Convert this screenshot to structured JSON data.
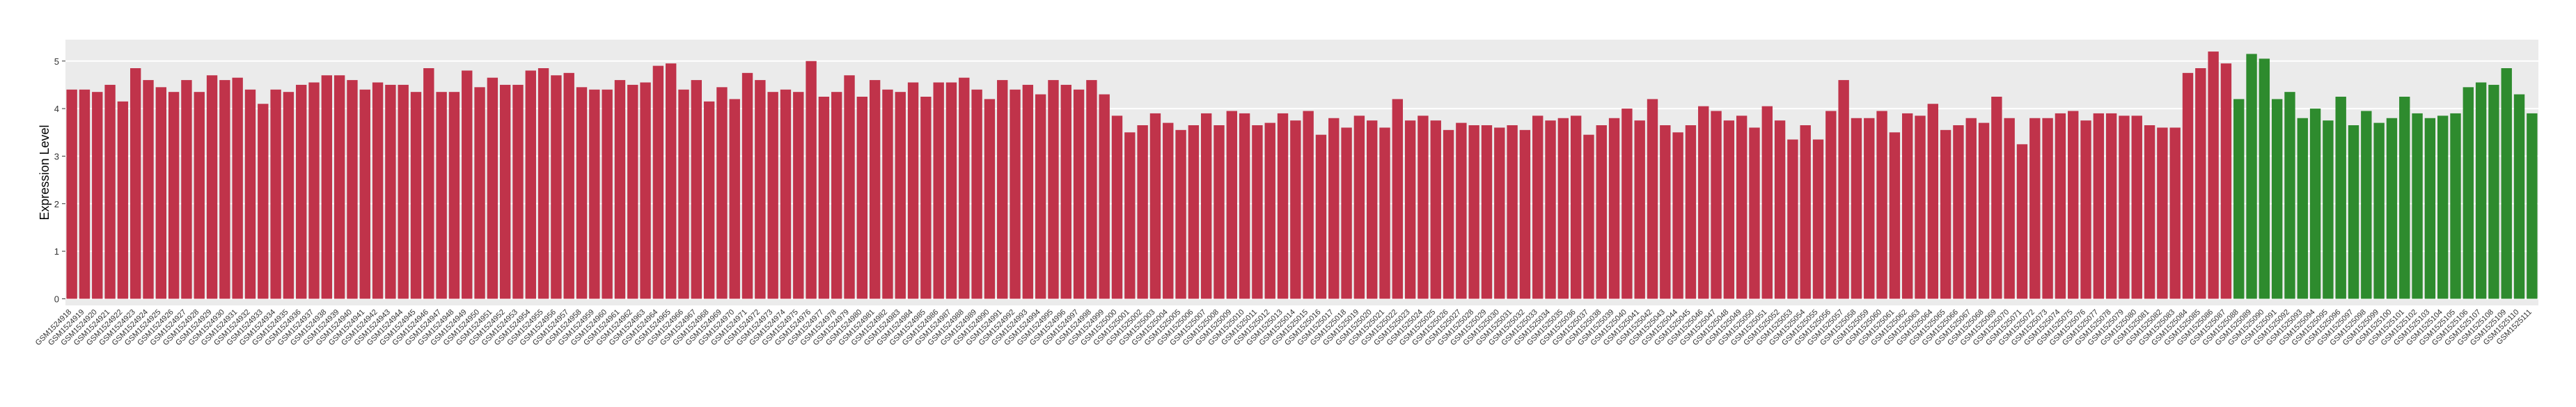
{
  "chart_data": {
    "type": "bar",
    "ylabel": "Expression Level",
    "categories": [
      "GSM1524918",
      "GSM1524919",
      "GSM1524920",
      "GSM1524921",
      "GSM1524922",
      "GSM1524923",
      "GSM1524924",
      "GSM1524925",
      "GSM1524926",
      "GSM1524927",
      "GSM1524928",
      "GSM1524929",
      "GSM1524930",
      "GSM1524931",
      "GSM1524932",
      "GSM1524933",
      "GSM1524934",
      "GSM1524935",
      "GSM1524936",
      "GSM1524937",
      "GSM1524938",
      "GSM1524939",
      "GSM1524940",
      "GSM1524941",
      "GSM1524942",
      "GSM1524943",
      "GSM1524944",
      "GSM1524945",
      "GSM1524946",
      "GSM1524947",
      "GSM1524948",
      "GSM1524949",
      "GSM1524950",
      "GSM1524951",
      "GSM1524952",
      "GSM1524953",
      "GSM1524954",
      "GSM1524955",
      "GSM1524956",
      "GSM1524957",
      "GSM1524958",
      "GSM1524959",
      "GSM1524960",
      "GSM1524961",
      "GSM1524962",
      "GSM1524963",
      "GSM1524964",
      "GSM1524965",
      "GSM1524966",
      "GSM1524967",
      "GSM1524968",
      "GSM1524969",
      "GSM1524970",
      "GSM1524971",
      "GSM1524972",
      "GSM1524973",
      "GSM1524974",
      "GSM1524975",
      "GSM1524976",
      "GSM1524977",
      "GSM1524978",
      "GSM1524979",
      "GSM1524980",
      "GSM1524981",
      "GSM1524982",
      "GSM1524983",
      "GSM1524984",
      "GSM1524985",
      "GSM1524986",
      "GSM1524987",
      "GSM1524988",
      "GSM1524989",
      "GSM1524990",
      "GSM1524991",
      "GSM1524992",
      "GSM1524993",
      "GSM1524994",
      "GSM1524995",
      "GSM1524996",
      "GSM1524997",
      "GSM1524998",
      "GSM1524999",
      "GSM1525000",
      "GSM1525001",
      "GSM1525002",
      "GSM1525003",
      "GSM1525004",
      "GSM1525005",
      "GSM1525006",
      "GSM1525007",
      "GSM1525008",
      "GSM1525009",
      "GSM1525010",
      "GSM1525011",
      "GSM1525012",
      "GSM1525013",
      "GSM1525014",
      "GSM1525015",
      "GSM1525016",
      "GSM1525017",
      "GSM1525018",
      "GSM1525019",
      "GSM1525020",
      "GSM1525021",
      "GSM1525022",
      "GSM1525023",
      "GSM1525024",
      "GSM1525025",
      "GSM1525026",
      "GSM1525027",
      "GSM1525028",
      "GSM1525029",
      "GSM1525030",
      "GSM1525031",
      "GSM1525032",
      "GSM1525033",
      "GSM1525034",
      "GSM1525035",
      "GSM1525036",
      "GSM1525037",
      "GSM1525038",
      "GSM1525039",
      "GSM1525040",
      "GSM1525041",
      "GSM1525042",
      "GSM1525043",
      "GSM1525044",
      "GSM1525045",
      "GSM1525046",
      "GSM1525047",
      "GSM1525048",
      "GSM1525049",
      "GSM1525050",
      "GSM1525051",
      "GSM1525052",
      "GSM1525053",
      "GSM1525054",
      "GSM1525055",
      "GSM1525056",
      "GSM1525057",
      "GSM1525058",
      "GSM1525059",
      "GSM1525060",
      "GSM1525061",
      "GSM1525062",
      "GSM1525063",
      "GSM1525064",
      "GSM1525065",
      "GSM1525066",
      "GSM1525067",
      "GSM1525068",
      "GSM1525069",
      "GSM1525070",
      "GSM1525071",
      "GSM1525072",
      "GSM1525073",
      "GSM1525074",
      "GSM1525075",
      "GSM1525076",
      "GSM1525077",
      "GSM1525078",
      "GSM1525079",
      "GSM1525080",
      "GSM1525081",
      "GSM1525082",
      "GSM1525083",
      "GSM1525084",
      "GSM1525085",
      "GSM1525086",
      "GSM1525087",
      "GSM1525088",
      "GSM1525089",
      "GSM1525090",
      "GSM1525091",
      "GSM1525092",
      "GSM1525093",
      "GSM1525094",
      "GSM1525095",
      "GSM1525096",
      "GSM1525097",
      "GSM1525098",
      "GSM1525099",
      "GSM1525100",
      "GSM1525101",
      "GSM1525102",
      "GSM1525103",
      "GSM1525104",
      "GSM1525105",
      "GSM1525106",
      "GSM1525107",
      "GSM1525108",
      "GSM1525109",
      "GSM1525110",
      "GSM1525111"
    ],
    "values": [
      4.4,
      4.4,
      4.35,
      4.5,
      4.15,
      4.85,
      4.6,
      4.45,
      4.35,
      4.6,
      4.35,
      4.7,
      4.6,
      4.65,
      4.4,
      4.1,
      4.4,
      4.35,
      4.5,
      4.55,
      4.7,
      4.7,
      4.6,
      4.4,
      4.55,
      4.5,
      4.5,
      4.35,
      4.85,
      4.35,
      4.35,
      4.8,
      4.45,
      4.65,
      4.5,
      4.5,
      4.8,
      4.85,
      4.7,
      4.75,
      4.45,
      4.4,
      4.4,
      4.6,
      4.5,
      4.55,
      4.9,
      4.95,
      4.4,
      4.6,
      4.15,
      4.45,
      4.2,
      4.75,
      4.6,
      4.35,
      4.4,
      4.35,
      5.0,
      4.25,
      4.35,
      4.7,
      4.25,
      4.6,
      4.4,
      4.35,
      4.55,
      4.25,
      4.55,
      4.55,
      4.65,
      4.4,
      4.2,
      4.6,
      4.4,
      4.5,
      4.3,
      4.6,
      4.5,
      4.4,
      4.6,
      4.3,
      3.85,
      3.5,
      3.65,
      3.9,
      3.7,
      3.55,
      3.65,
      3.9,
      3.65,
      3.95,
      3.9,
      3.65,
      3.7,
      3.9,
      3.75,
      3.95,
      3.45,
      3.8,
      3.6,
      3.85,
      3.75,
      3.6,
      4.2,
      3.75,
      3.85,
      3.75,
      3.55,
      3.7,
      3.65,
      3.65,
      3.6,
      3.65,
      3.55,
      3.85,
      3.75,
      3.8,
      3.85,
      3.45,
      3.65,
      3.8,
      4.0,
      3.75,
      4.2,
      3.65,
      3.5,
      3.65,
      4.05,
      3.95,
      3.75,
      3.85,
      3.6,
      4.05,
      3.75,
      3.35,
      3.65,
      3.35,
      3.95,
      4.6,
      3.8,
      3.8,
      3.95,
      3.5,
      3.9,
      3.85,
      4.1,
      3.55,
      3.65,
      3.8,
      3.7,
      4.25,
      3.8,
      3.25,
      3.8,
      3.8,
      3.9,
      3.95,
      3.75,
      3.9,
      3.9,
      3.85,
      3.85,
      3.65,
      3.6,
      3.6,
      4.75,
      4.85,
      5.2,
      4.95,
      4.2,
      5.15,
      5.05,
      4.2,
      4.35,
      3.8,
      4.0,
      3.75,
      4.25,
      3.65,
      3.95,
      3.7,
      3.8,
      4.25,
      3.9,
      3.8,
      3.85,
      3.9,
      4.45,
      4.55,
      4.5,
      4.85,
      4.3,
      3.9
    ],
    "colors": [
      "#c0334a",
      "#c0334a",
      "#c0334a",
      "#c0334a",
      "#c0334a",
      "#c0334a",
      "#c0334a",
      "#c0334a",
      "#c0334a",
      "#c0334a",
      "#c0334a",
      "#c0334a",
      "#c0334a",
      "#c0334a",
      "#c0334a",
      "#c0334a",
      "#c0334a",
      "#c0334a",
      "#c0334a",
      "#c0334a",
      "#c0334a",
      "#c0334a",
      "#c0334a",
      "#c0334a",
      "#c0334a",
      "#c0334a",
      "#c0334a",
      "#c0334a",
      "#c0334a",
      "#c0334a",
      "#c0334a",
      "#c0334a",
      "#c0334a",
      "#c0334a",
      "#c0334a",
      "#c0334a",
      "#c0334a",
      "#c0334a",
      "#c0334a",
      "#c0334a",
      "#c0334a",
      "#c0334a",
      "#c0334a",
      "#c0334a",
      "#c0334a",
      "#c0334a",
      "#c0334a",
      "#c0334a",
      "#c0334a",
      "#c0334a",
      "#c0334a",
      "#c0334a",
      "#c0334a",
      "#c0334a",
      "#c0334a",
      "#c0334a",
      "#c0334a",
      "#c0334a",
      "#c0334a",
      "#c0334a",
      "#c0334a",
      "#c0334a",
      "#c0334a",
      "#c0334a",
      "#c0334a",
      "#c0334a",
      "#c0334a",
      "#c0334a",
      "#c0334a",
      "#c0334a",
      "#c0334a",
      "#c0334a",
      "#c0334a",
      "#c0334a",
      "#c0334a",
      "#c0334a",
      "#c0334a",
      "#c0334a",
      "#c0334a",
      "#c0334a",
      "#c0334a",
      "#c0334a",
      "#c0334a",
      "#c0334a",
      "#c0334a",
      "#c0334a",
      "#c0334a",
      "#c0334a",
      "#c0334a",
      "#c0334a",
      "#c0334a",
      "#c0334a",
      "#c0334a",
      "#c0334a",
      "#c0334a",
      "#c0334a",
      "#c0334a",
      "#c0334a",
      "#c0334a",
      "#c0334a",
      "#c0334a",
      "#c0334a",
      "#c0334a",
      "#c0334a",
      "#c0334a",
      "#c0334a",
      "#c0334a",
      "#c0334a",
      "#c0334a",
      "#c0334a",
      "#c0334a",
      "#c0334a",
      "#c0334a",
      "#c0334a",
      "#c0334a",
      "#c0334a",
      "#c0334a",
      "#c0334a",
      "#c0334a",
      "#c0334a",
      "#c0334a",
      "#c0334a",
      "#c0334a",
      "#c0334a",
      "#c0334a",
      "#c0334a",
      "#c0334a",
      "#c0334a",
      "#c0334a",
      "#c0334a",
      "#c0334a",
      "#c0334a",
      "#c0334a",
      "#c0334a",
      "#c0334a",
      "#c0334a",
      "#c0334a",
      "#c0334a",
      "#c0334a",
      "#c0334a",
      "#c0334a",
      "#c0334a",
      "#c0334a",
      "#c0334a",
      "#c0334a",
      "#c0334a",
      "#c0334a",
      "#c0334a",
      "#c0334a",
      "#c0334a",
      "#c0334a",
      "#c0334a",
      "#c0334a",
      "#c0334a",
      "#c0334a",
      "#c0334a",
      "#c0334a",
      "#c0334a",
      "#c0334a",
      "#c0334a",
      "#c0334a",
      "#c0334a",
      "#c0334a",
      "#c0334a",
      "#c0334a",
      "#c0334a",
      "#c0334a",
      "#c0334a",
      "#c0334a",
      "#c0334a",
      "#2e8b2e",
      "#2e8b2e",
      "#2e8b2e",
      "#2e8b2e",
      "#2e8b2e",
      "#2e8b2e",
      "#2e8b2e",
      "#2e8b2e",
      "#2e8b2e",
      "#2e8b2e",
      "#2e8b2e",
      "#2e8b2e",
      "#2e8b2e",
      "#2e8b2e",
      "#2e8b2e",
      "#2e8b2e",
      "#2e8b2e",
      "#2e8b2e",
      "#2e8b2e",
      "#2e8b2e",
      "#2e8b2e",
      "#2e8b2e",
      "#2e8b2e",
      "#2e8b2e"
    ],
    "ylim": [
      -0.14,
      5.45
    ],
    "yticks": [
      0,
      1,
      2,
      3,
      4,
      5
    ],
    "grid": true
  }
}
